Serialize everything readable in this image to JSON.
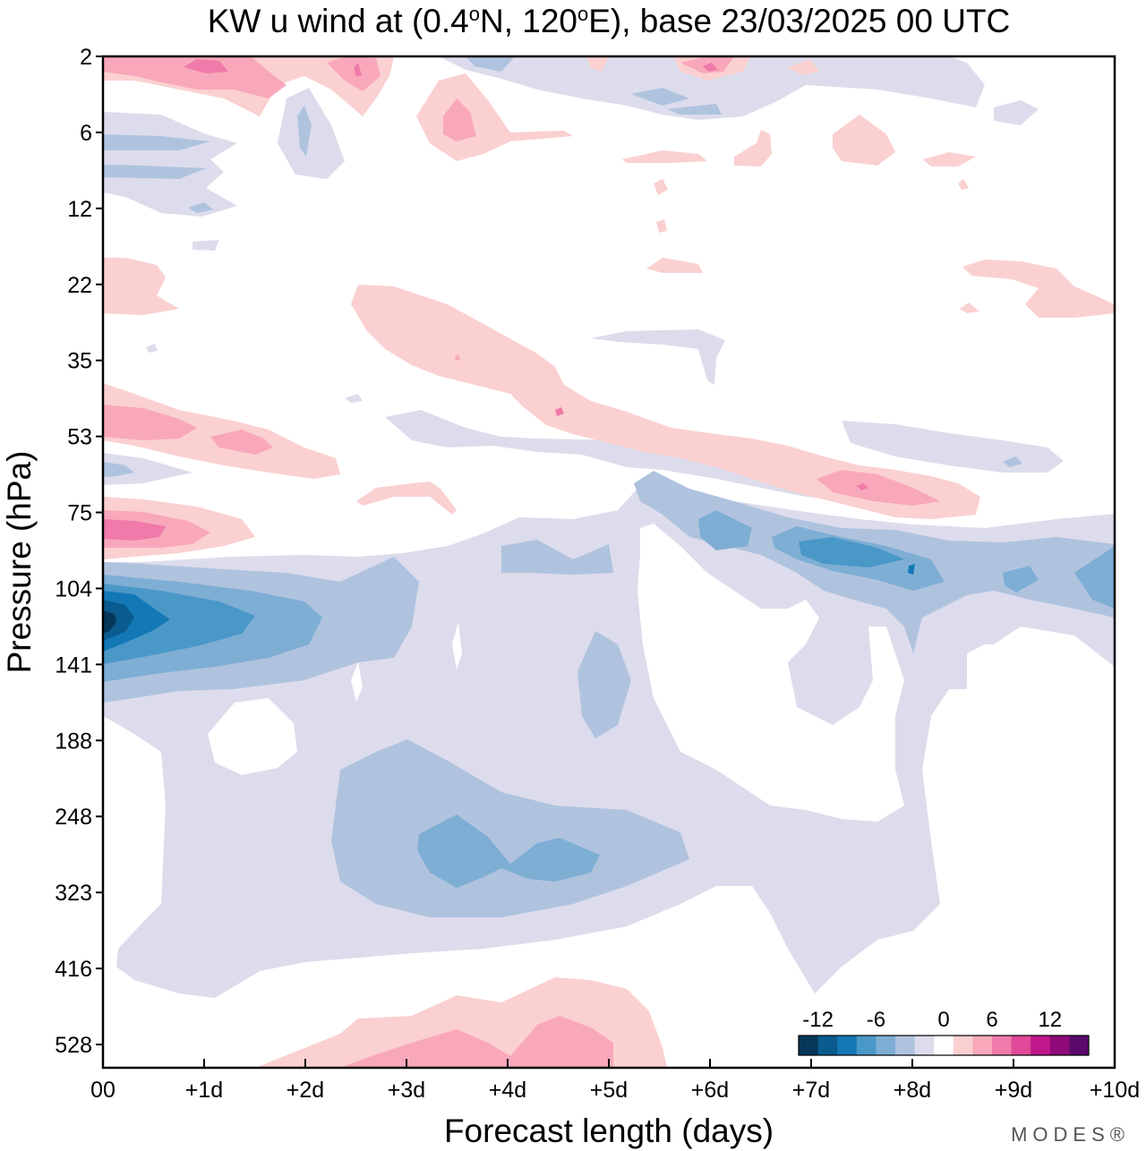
{
  "chart_data": {
    "type": "heatmap",
    "title": "KW u wind at (0.4°N, 120°E),  base 23/03/2025  00 UTC",
    "title_parts": {
      "prefix": "KW u wind at (0.4",
      "deg1": "o",
      "mid": "N, 120",
      "deg2": "o",
      "suffix": "E),  base 23/03/2025  00 UTC"
    },
    "xlabel": "Forecast length (days)",
    "ylabel": "Pressure (hPa)",
    "x_ticks": [
      "00",
      "+1d",
      "+2d",
      "+3d",
      "+4d",
      "+5d",
      "+6d",
      "+7d",
      "+8d",
      "+9d",
      "+10d"
    ],
    "xlim": [
      0,
      10
    ],
    "y_ticks": [
      "2",
      "6",
      "12",
      "22",
      "35",
      "53",
      "75",
      "104",
      "141",
      "188",
      "248",
      "323",
      "416",
      "528"
    ],
    "colorbar": {
      "labels": [
        "-12",
        "-6",
        "0",
        "6",
        "12"
      ],
      "levels": [
        -14,
        -12,
        -10,
        -8,
        -6,
        -4,
        -2,
        2,
        4,
        6,
        8,
        10,
        12,
        14
      ],
      "colors": [
        "#05375a",
        "#0a5c8e",
        "#1478b6",
        "#4a98c8",
        "#7eaed4",
        "#b0c3de",
        "#dcdcec",
        "#ffffff",
        "#fbd0d0",
        "#f8a8ba",
        "#f07aaa",
        "#e04a98",
        "#c0188a",
        "#8e0a78",
        "#5a0a6a"
      ]
    },
    "brand": "MODES®",
    "fields": {
      "negative": [
        {
          "level": -2,
          "areas": [
            "main lower band 75–416 hPa across days 0–10",
            "upper patches near 6–12 hPa at day 0–1.5",
            "band near 53–75 hPa days 3–9"
          ]
        },
        {
          "level": -4,
          "areas": [
            "104–141 hPa band days 0–2",
            "188–323 hPa block days 2.2–5.8",
            "75–104 hPa band days 5.3–10"
          ]
        },
        {
          "level": -6,
          "areas": [
            "104–141 hPa days 0–1.5",
            "248–323 hPa days 3–5",
            "75–104 hPa days 6.8–8"
          ]
        },
        {
          "level": -8,
          "areas": [
            "104–141 hPa days 0–0.7"
          ]
        },
        {
          "level": -10,
          "areas": [
            "~120 hPa at day 0–0.2"
          ]
        }
      ],
      "positive": [
        {
          "level": 2,
          "areas": [
            "2–6 hPa near days 0–3",
            "22–53 hPa diagonal band days 2.5–10",
            "53–104 hPa near day 0–1.5",
            "416–528 hPa days 1.5–5.5"
          ]
        },
        {
          "level": 4,
          "areas": [
            "2 hPa days 0.5–1.5",
            "53 hPa days 0–1.7",
            "75–104 hPa days 0–1",
            "528 hPa days 3–5"
          ]
        },
        {
          "level": 6,
          "areas": [
            "2 hPa day 1",
            "75–104 hPa day 0.5"
          ]
        }
      ]
    }
  }
}
